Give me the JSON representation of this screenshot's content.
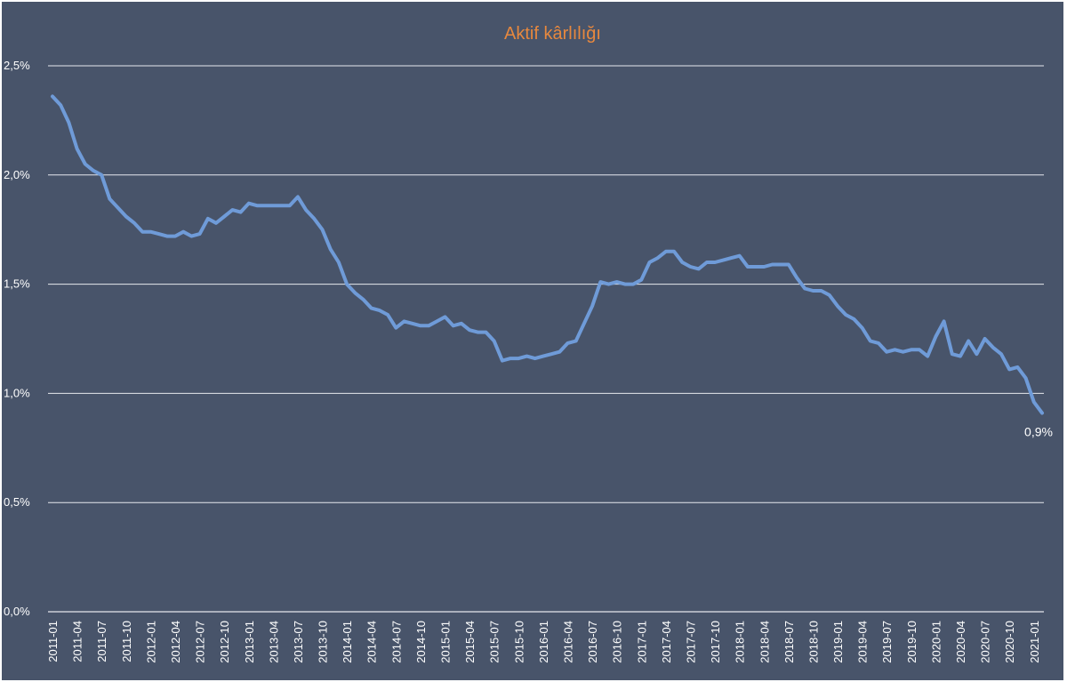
{
  "chart_data": {
    "type": "line",
    "title": "Aktif kârlılığı",
    "xlabel": "",
    "ylabel": "",
    "ylim": [
      0,
      2.5
    ],
    "y_ticks": [
      {
        "value": 0.0,
        "label": "0,0%"
      },
      {
        "value": 0.5,
        "label": "0,5%"
      },
      {
        "value": 1.0,
        "label": "1,0%"
      },
      {
        "value": 1.5,
        "label": "1,5%"
      },
      {
        "value": 2.0,
        "label": "2,0%"
      },
      {
        "value": 2.5,
        "label": "2,5%"
      }
    ],
    "x_tick_labels": [
      "2011-01",
      "2011-04",
      "2011-07",
      "2011-10",
      "2012-01",
      "2012-04",
      "2012-07",
      "2012-10",
      "2013-01",
      "2013-04",
      "2013-07",
      "2013-10",
      "2014-01",
      "2014-04",
      "2014-07",
      "2014-10",
      "2015-01",
      "2015-04",
      "2015-07",
      "2015-10",
      "2016-01",
      "2016-04",
      "2016-07",
      "2016-10",
      "2017-01",
      "2017-04",
      "2017-07",
      "2017-10",
      "2018-01",
      "2018-04",
      "2018-07",
      "2018-10",
      "2019-01",
      "2019-04",
      "2019-07",
      "2019-10",
      "2020-01",
      "2020-04",
      "2020-07",
      "2020-10",
      "2021-01"
    ],
    "start_month": "2011-01",
    "grid": true,
    "legend": "none",
    "colors": {
      "background": "#48546a",
      "line": "#6f9bd8",
      "title": "#e7883e",
      "grid": "#e6e8ee",
      "text": "#ffffff"
    },
    "series": [
      {
        "values": [
          2.36,
          2.32,
          2.24,
          2.12,
          2.05,
          2.02,
          2.0,
          1.89,
          1.85,
          1.81,
          1.78,
          1.74,
          1.74,
          1.73,
          1.72,
          1.72,
          1.74,
          1.72,
          1.73,
          1.8,
          1.78,
          1.81,
          1.84,
          1.83,
          1.87,
          1.86,
          1.86,
          1.86,
          1.86,
          1.86,
          1.9,
          1.84,
          1.8,
          1.75,
          1.66,
          1.6,
          1.5,
          1.46,
          1.43,
          1.39,
          1.38,
          1.36,
          1.3,
          1.33,
          1.32,
          1.31,
          1.31,
          1.33,
          1.35,
          1.31,
          1.32,
          1.29,
          1.28,
          1.28,
          1.24,
          1.15,
          1.16,
          1.16,
          1.17,
          1.16,
          1.17,
          1.18,
          1.19,
          1.23,
          1.24,
          1.32,
          1.4,
          1.51,
          1.5,
          1.51,
          1.5,
          1.5,
          1.52,
          1.6,
          1.62,
          1.65,
          1.65,
          1.6,
          1.58,
          1.57,
          1.6,
          1.6,
          1.61,
          1.62,
          1.63,
          1.58,
          1.58,
          1.58,
          1.59,
          1.59,
          1.59,
          1.53,
          1.48,
          1.47,
          1.47,
          1.45,
          1.4,
          1.36,
          1.34,
          1.3,
          1.24,
          1.23,
          1.19,
          1.2,
          1.19,
          1.2,
          1.2,
          1.17,
          1.26,
          1.33,
          1.18,
          1.17,
          1.24,
          1.18,
          1.25,
          1.21,
          1.18,
          1.11,
          1.12,
          1.07,
          0.96,
          0.91
        ]
      }
    ],
    "annotations": [
      {
        "text": "0,9%",
        "x": "2021-02",
        "y": 0.91
      }
    ]
  }
}
